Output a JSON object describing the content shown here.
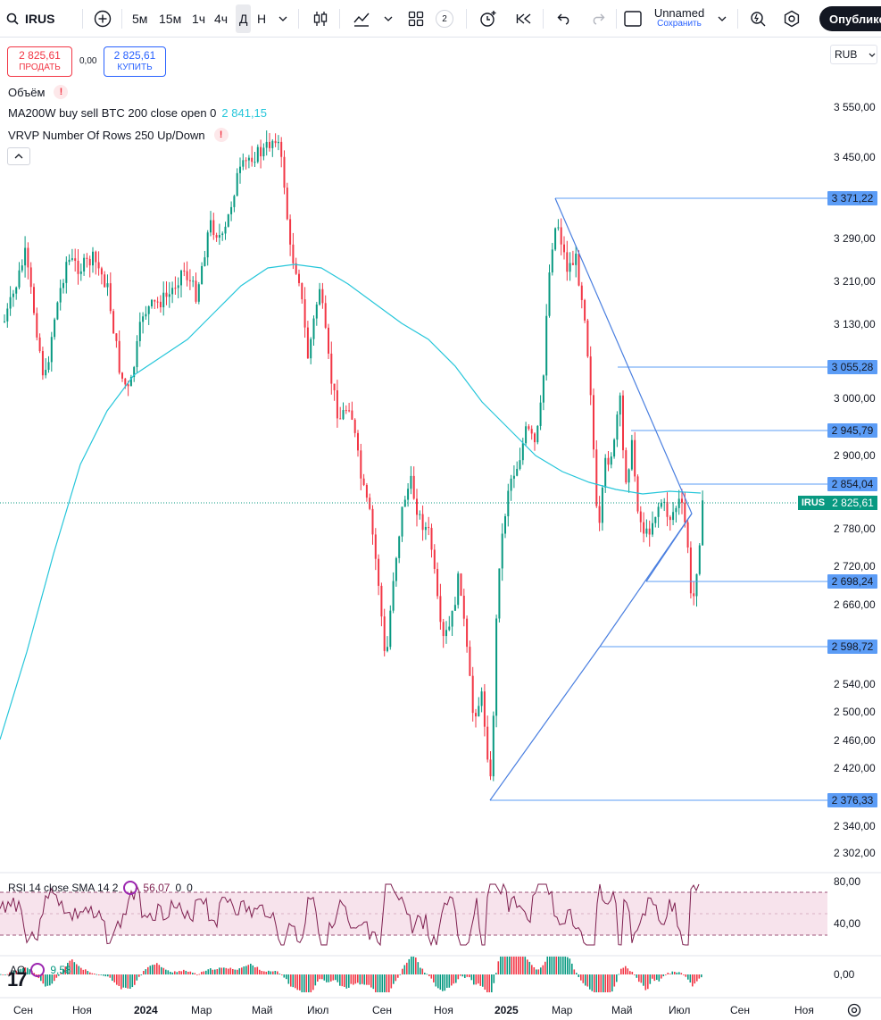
{
  "toolbar": {
    "symbol": "IRUS",
    "timeframes": [
      "5м",
      "15м",
      "1ч",
      "4ч",
      "Д",
      "Н"
    ],
    "active_timeframe": "Д",
    "indicator_badge": "2",
    "layout_name": "Unnamed",
    "layout_sub": "Сохранить",
    "publish_label": "Опубликовать"
  },
  "trade": {
    "sell_price": "2 825,61",
    "sell_label": "ПРОДАТЬ",
    "spread": "0,00",
    "buy_price": "2 825,61",
    "buy_label": "КУПИТЬ"
  },
  "currency": "RUB",
  "legend": {
    "volume": "Объём",
    "ma": "MA200W buy sell BTC 200 close open 0",
    "ma_value": "2 841,15",
    "vrvp": "VRVP Number Of Rows 250 Up/Down",
    "warn_symbol": "!"
  },
  "price_axis": [
    "3 550,00",
    "3 450,00",
    "3 290,00",
    "3 210,00",
    "3 130,00",
    "3 000,00",
    "2 900,00",
    "2 780,00",
    "2 720,00",
    "2 660,00",
    "2 540,00",
    "2 500,00",
    "2 460,00",
    "2 420,00",
    "2 340,00",
    "2 302,00"
  ],
  "levels": [
    "3 371,22",
    "3 055,28",
    "2 945,79",
    "2 854,04",
    "2 698,24",
    "2 598,72",
    "2 376,33"
  ],
  "current": {
    "symbol": "IRUS",
    "price": "2 825,61"
  },
  "rsi": {
    "label": "RSI 14 close SMA 14 2",
    "value": "56,07",
    "extra": "0",
    "extra2": "0",
    "axis": [
      "80,00",
      "40,00"
    ]
  },
  "ao": {
    "label": "AO",
    "value": "9,58",
    "axis": "0,00"
  },
  "time_axis": [
    {
      "label": "Сен",
      "bold": false
    },
    {
      "label": "Ноя",
      "bold": false
    },
    {
      "label": "2024",
      "bold": true
    },
    {
      "label": "Мар",
      "bold": false
    },
    {
      "label": "Май",
      "bold": false
    },
    {
      "label": "Июл",
      "bold": false
    },
    {
      "label": "Сен",
      "bold": false
    },
    {
      "label": "Ноя",
      "bold": false
    },
    {
      "label": "2025",
      "bold": true
    },
    {
      "label": "Мар",
      "bold": false
    },
    {
      "label": "Май",
      "bold": false
    },
    {
      "label": "Июл",
      "bold": false
    },
    {
      "label": "Сен",
      "bold": false
    },
    {
      "label": "Ноя",
      "bold": false
    }
  ],
  "colors": {
    "up": "#089981",
    "down": "#f23645",
    "ma": "#26c6da",
    "lines": "#2962ff",
    "rsi": "#7e1f4f"
  }
}
